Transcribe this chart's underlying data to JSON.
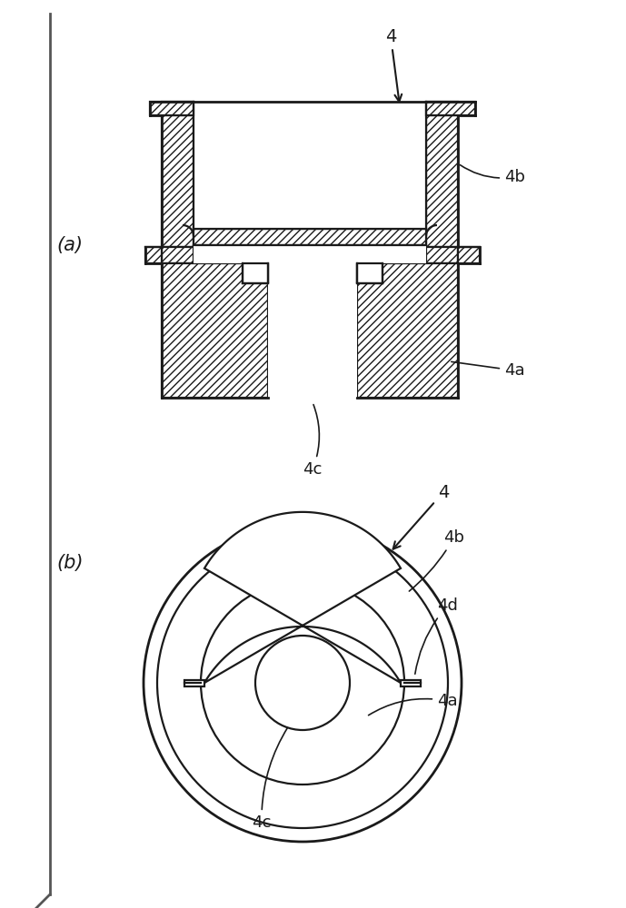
{
  "bg_color": "#ffffff",
  "line_color": "#1a1a1a",
  "label_a": "(a)",
  "label_b": "(b)",
  "label_4": "4",
  "label_4a": "4a",
  "label_4b": "4b",
  "label_4c": "4c",
  "label_4d": "4d",
  "fig_width": 6.89,
  "fig_height": 10.0
}
